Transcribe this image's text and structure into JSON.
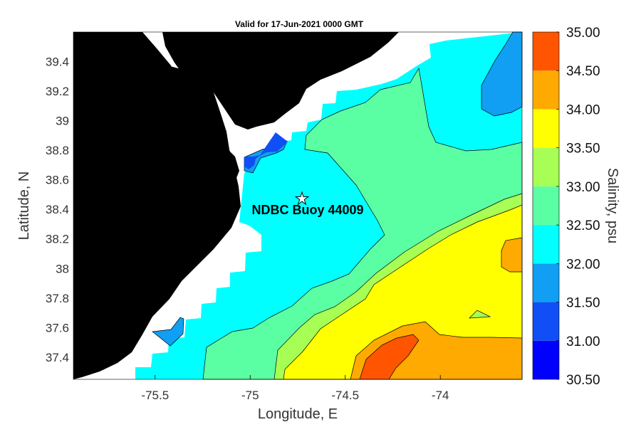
{
  "chart_data": {
    "type": "contour map",
    "title": "Valid for 17-Jun-2021 0000 GMT",
    "xlabel": "Longitude, E",
    "ylabel": "Latitude, N",
    "colorbar_label": "Salinity, psu",
    "xlim": [
      -75.93,
      -73.57
    ],
    "ylim": [
      37.25,
      39.6
    ],
    "xticks": [
      -75.5,
      -75,
      -74.5,
      -74
    ],
    "xtick_labels": [
      "-75.5",
      "-75",
      "-74.5",
      "-74"
    ],
    "yticks": [
      37.4,
      37.6,
      37.8,
      38,
      38.2,
      38.4,
      38.6,
      38.8,
      39,
      39.2,
      39.4
    ],
    "ytick_labels": [
      "37.4",
      "37.6",
      "37.8",
      "38",
      "38.2",
      "38.4",
      "38.6",
      "38.8",
      "39",
      "39.2",
      "39.4"
    ],
    "colorbar": {
      "levels": [
        30.5,
        31.0,
        31.5,
        32.0,
        32.5,
        33.0,
        33.5,
        34.0,
        34.5,
        35.0
      ],
      "labels": [
        "30.50",
        "31.00",
        "31.50",
        "32.00",
        "32.50",
        "33.00",
        "33.50",
        "34.00",
        "34.50",
        "35.00"
      ],
      "colors": [
        "#0000ff",
        "#0f4ff5",
        "#109ff2",
        "#00ffff",
        "#5bffa3",
        "#a7ff55",
        "#ffff00",
        "#ffaa00",
        "#ff5500"
      ]
    },
    "marker": {
      "label": "NDBC Buoy 44009",
      "lon": -74.7,
      "lat": 38.46,
      "symbol": "star"
    },
    "land_color": "#000000",
    "grid": false
  }
}
